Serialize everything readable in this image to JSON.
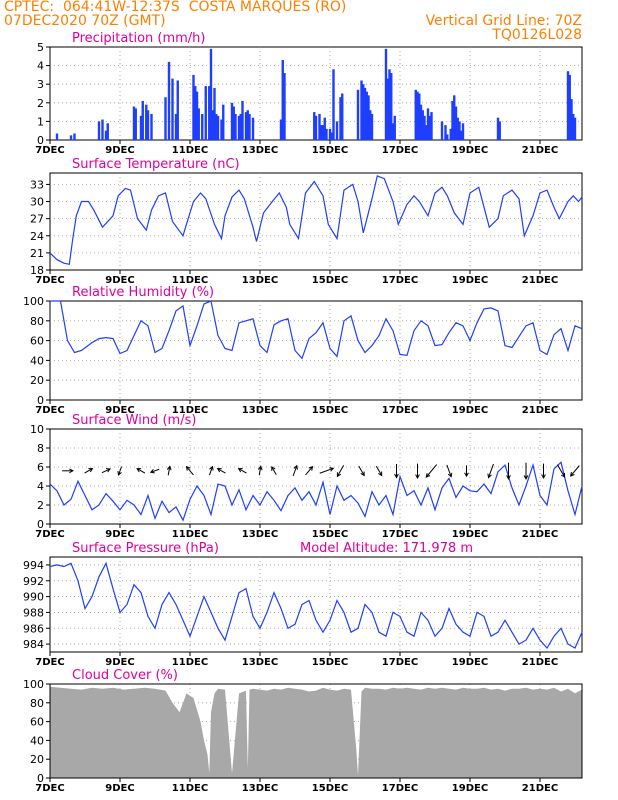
{
  "header": {
    "line1": "CPTEC:  064:41W-12:37S  COSTA MARQUES (RO)",
    "line2": "07DEC2020 70Z (GMT)",
    "grid_note": "Vertical Grid Line: 70Z",
    "model_code": "TQ0126L028"
  },
  "colors": {
    "series": "#1f3fff",
    "title": "#e0009a",
    "header": "#ff7f00",
    "arrow": "#000000",
    "cloud": "#a8a8a8",
    "grid": "#9a9a9a"
  },
  "x_tick_labels": [
    "7DEC",
    "9DEC",
    "11DEC",
    "13DEC",
    "15DEC",
    "17DEC",
    "19DEC",
    "21DEC"
  ],
  "x_tick_days": [
    7,
    9,
    11,
    13,
    15,
    17,
    19,
    21
  ],
  "x_range_days": [
    7,
    22.2
  ],
  "chart_data": [
    {
      "id": "precip",
      "type": "bar",
      "title": "Precipitation (mm/h)",
      "ylim": [
        0,
        5
      ],
      "yticks": [
        0,
        1,
        2,
        3,
        4,
        5
      ],
      "x_days": [
        7.2,
        7.6,
        7.7,
        8.4,
        8.5,
        8.6,
        8.65,
        9.4,
        9.45,
        9.6,
        9.65,
        9.75,
        9.8,
        9.9,
        10.3,
        10.4,
        10.5,
        10.6,
        10.65,
        11.1,
        11.15,
        11.2,
        11.25,
        11.35,
        11.45,
        11.55,
        11.6,
        11.65,
        11.7,
        11.75,
        11.8,
        11.9,
        11.95,
        12.2,
        12.25,
        12.3,
        12.4,
        12.45,
        12.5,
        12.6,
        12.65,
        12.7,
        12.8,
        13.6,
        13.65,
        13.7,
        14.55,
        14.6,
        14.7,
        14.75,
        14.8,
        14.85,
        14.9,
        15.0,
        15.05,
        15.1,
        15.2,
        15.3,
        15.35,
        15.8,
        15.9,
        15.95,
        16.0,
        16.05,
        16.1,
        16.15,
        16.2,
        16.6,
        16.65,
        16.7,
        16.75,
        16.8,
        16.85,
        17.45,
        17.5,
        17.55,
        17.6,
        17.65,
        17.7,
        17.75,
        17.8,
        17.85,
        17.9,
        18.2,
        18.3,
        18.35,
        18.45,
        18.5,
        18.55,
        18.6,
        18.65,
        18.7,
        18.75,
        18.8,
        19.8,
        19.85,
        21.8,
        21.85,
        21.9,
        21.95,
        22.0
      ],
      "values": [
        0.35,
        0.25,
        0.35,
        1.0,
        1.1,
        0.5,
        0.9,
        1.8,
        1.7,
        1.3,
        2.1,
        1.9,
        1.6,
        1.4,
        2.3,
        4.2,
        3.3,
        1.4,
        3.2,
        3.5,
        2.9,
        2.6,
        1.7,
        1.4,
        2.9,
        2.9,
        4.9,
        1.6,
        2.8,
        1.4,
        1.3,
        1.1,
        1.9,
        2.0,
        1.8,
        1.4,
        1.3,
        1.4,
        2.1,
        1.5,
        1.6,
        1.4,
        1.2,
        1.1,
        4.3,
        3.6,
        1.5,
        1.3,
        1.4,
        0.8,
        0.8,
        1.2,
        0.6,
        0.6,
        0.4,
        3.8,
        1.0,
        2.3,
        2.5,
        2.7,
        3.2,
        3.0,
        2.8,
        2.6,
        2.4,
        1.6,
        1.4,
        4.9,
        3.3,
        3.8,
        3.6,
        0.9,
        1.3,
        2.7,
        2.6,
        2.5,
        1.9,
        1.6,
        1.3,
        0.8,
        1.7,
        1.3,
        1.5,
        1.0,
        0.8,
        0.3,
        0.6,
        2.1,
        2.4,
        1.8,
        1.2,
        1.0,
        0.5,
        0.9,
        1.2,
        1.0,
        3.7,
        3.5,
        2.2,
        1.4,
        1.2
      ]
    },
    {
      "id": "temp",
      "type": "line",
      "title": "Surface Temperature (nC)",
      "ylim": [
        18,
        35
      ],
      "yticks": [
        18,
        21,
        24,
        27,
        30,
        33
      ],
      "x_days": [
        7.0,
        7.2,
        7.4,
        7.55,
        7.65,
        7.75,
        7.9,
        8.1,
        8.25,
        8.5,
        8.8,
        8.95,
        9.15,
        9.3,
        9.5,
        9.75,
        9.9,
        10.1,
        10.3,
        10.5,
        10.8,
        10.95,
        11.1,
        11.3,
        11.45,
        11.7,
        11.9,
        12.0,
        12.2,
        12.4,
        12.55,
        12.8,
        12.9,
        13.1,
        13.35,
        13.55,
        13.75,
        13.85,
        14.1,
        14.3,
        14.55,
        14.8,
        14.95,
        15.2,
        15.4,
        15.65,
        15.8,
        15.95,
        16.2,
        16.35,
        16.55,
        16.8,
        16.95,
        17.2,
        17.4,
        17.55,
        17.8,
        18.0,
        18.2,
        18.35,
        18.55,
        18.8,
        19.0,
        19.25,
        19.4,
        19.55,
        19.8,
        19.95,
        20.2,
        20.4,
        20.55,
        20.8,
        21.0,
        21.2,
        21.4,
        21.55,
        21.8,
        21.95,
        22.1,
        22.2
      ],
      "values": [
        21.0,
        19.8,
        19.2,
        19.0,
        23.5,
        27.5,
        30.0,
        30.0,
        28.5,
        25.5,
        27.5,
        31.0,
        32.3,
        32.0,
        27.0,
        25.0,
        28.5,
        31.0,
        31.5,
        26.5,
        24.0,
        27.0,
        30.0,
        31.5,
        30.5,
        26.0,
        23.5,
        27.5,
        30.8,
        32.0,
        30.5,
        25.5,
        23.0,
        28.0,
        30.0,
        31.5,
        29.0,
        26.0,
        23.5,
        31.5,
        33.5,
        31.0,
        26.0,
        23.5,
        32.0,
        33.0,
        30.0,
        24.5,
        30.5,
        34.5,
        34.0,
        30.0,
        26.0,
        29.5,
        31.0,
        30.0,
        27.5,
        31.5,
        32.5,
        31.0,
        28.0,
        26.0,
        31.5,
        32.5,
        29.0,
        25.5,
        27.0,
        31.0,
        32.0,
        30.5,
        24.0,
        27.5,
        31.5,
        32.0,
        29.0,
        27.0,
        30.0,
        31.0,
        30.0,
        30.8
      ]
    },
    {
      "id": "humidity",
      "type": "line",
      "title": "Relative Humidity (%)",
      "ylim": [
        0,
        100
      ],
      "yticks": [
        0,
        20,
        40,
        60,
        80,
        100
      ],
      "x_days": [
        7.0,
        7.3,
        7.5,
        7.7,
        7.9,
        8.2,
        8.4,
        8.6,
        8.8,
        9.0,
        9.2,
        9.4,
        9.6,
        9.8,
        10.0,
        10.2,
        10.4,
        10.6,
        10.8,
        11.0,
        11.2,
        11.4,
        11.6,
        11.8,
        12.0,
        12.2,
        12.4,
        12.6,
        12.8,
        13.0,
        13.2,
        13.4,
        13.6,
        13.8,
        14.0,
        14.2,
        14.4,
        14.6,
        14.8,
        15.0,
        15.2,
        15.4,
        15.6,
        15.8,
        16.0,
        16.2,
        16.4,
        16.6,
        16.8,
        17.0,
        17.2,
        17.4,
        17.6,
        17.8,
        18.0,
        18.2,
        18.4,
        18.6,
        18.8,
        19.0,
        19.2,
        19.4,
        19.6,
        19.8,
        20.0,
        20.2,
        20.4,
        20.6,
        20.8,
        21.0,
        21.2,
        21.4,
        21.6,
        21.8,
        22.0,
        22.2
      ],
      "values": [
        100,
        100,
        60,
        48,
        50,
        58,
        62,
        63,
        62,
        47,
        50,
        65,
        80,
        75,
        48,
        52,
        70,
        90,
        95,
        55,
        75,
        97,
        100,
        65,
        52,
        50,
        78,
        80,
        82,
        55,
        48,
        76,
        80,
        82,
        50,
        42,
        62,
        68,
        78,
        52,
        44,
        80,
        85,
        60,
        48,
        55,
        65,
        82,
        70,
        46,
        45,
        70,
        80,
        75,
        55,
        56,
        68,
        78,
        75,
        60,
        78,
        92,
        93,
        90,
        55,
        53,
        64,
        75,
        78,
        50,
        46,
        66,
        72,
        50,
        75,
        72
      ]
    },
    {
      "id": "wind",
      "type": "line",
      "title": "Surface Wind (m/s)",
      "ylim": [
        0,
        10
      ],
      "yticks": [
        0,
        2,
        4,
        6,
        8,
        10
      ],
      "x_days": [
        7.0,
        7.2,
        7.4,
        7.6,
        7.8,
        8.0,
        8.2,
        8.4,
        8.6,
        8.8,
        9.0,
        9.2,
        9.4,
        9.6,
        9.8,
        10.0,
        10.2,
        10.4,
        10.6,
        10.8,
        11.0,
        11.2,
        11.4,
        11.6,
        11.8,
        12.0,
        12.2,
        12.4,
        12.6,
        12.8,
        13.0,
        13.2,
        13.4,
        13.6,
        13.8,
        14.0,
        14.2,
        14.4,
        14.6,
        14.8,
        15.0,
        15.2,
        15.4,
        15.6,
        15.8,
        16.0,
        16.2,
        16.4,
        16.6,
        16.8,
        17.0,
        17.2,
        17.4,
        17.6,
        17.8,
        18.0,
        18.2,
        18.4,
        18.6,
        18.8,
        19.0,
        19.2,
        19.4,
        19.6,
        19.8,
        20.0,
        20.2,
        20.4,
        20.6,
        20.8,
        21.0,
        21.2,
        21.4,
        21.6,
        21.8,
        22.0,
        22.2
      ],
      "values": [
        4.2,
        3.5,
        2.0,
        2.6,
        4.5,
        3.0,
        1.5,
        2.0,
        3.2,
        2.4,
        1.5,
        2.5,
        2.0,
        1.0,
        3.0,
        0.6,
        2.4,
        1.2,
        1.8,
        0.4,
        2.6,
        4.0,
        3.0,
        1.0,
        4.2,
        4.0,
        2.0,
        3.6,
        1.5,
        3.0,
        2.0,
        3.4,
        2.5,
        1.4,
        3.0,
        3.8,
        2.5,
        3.4,
        2.0,
        4.4,
        1.0,
        4.0,
        2.5,
        3.0,
        2.2,
        0.8,
        3.4,
        2.0,
        3.0,
        1.0,
        5.0,
        3.0,
        3.5,
        2.0,
        3.8,
        1.5,
        3.8,
        4.8,
        2.8,
        4.0,
        3.5,
        3.4,
        4.2,
        3.2,
        5.5,
        6.2,
        3.8,
        2.0,
        4.0,
        6.2,
        3.0,
        2.0,
        5.8,
        6.5,
        3.5,
        1.0,
        4.0
      ],
      "arrows": {
        "x_days": [
          7.5,
          8.1,
          8.6,
          9.0,
          9.6,
          10.0,
          10.4,
          11.0,
          11.6,
          11.9,
          12.5,
          13.0,
          13.4,
          14.0,
          14.4,
          14.9,
          15.3,
          15.9,
          16.4,
          16.9,
          17.5,
          17.9,
          18.4,
          18.9,
          19.6,
          20.1,
          20.6,
          21.1,
          21.6,
          22.0
        ],
        "directions_deg": [
          90,
          60,
          65,
          200,
          300,
          250,
          10,
          320,
          20,
          300,
          300,
          10,
          330,
          20,
          40,
          70,
          210,
          150,
          150,
          180,
          180,
          220,
          160,
          180,
          200,
          180,
          180,
          180,
          150,
          220
        ],
        "lengths": [
          1.2,
          1.0,
          1.0,
          1.0,
          1.0,
          1.0,
          1.0,
          1.2,
          1.0,
          1.0,
          1.0,
          1.0,
          1.0,
          1.2,
          1.2,
          1.6,
          1.4,
          1.2,
          1.2,
          1.5,
          1.6,
          1.8,
          1.4,
          1.2,
          1.6,
          1.8,
          1.8,
          1.6,
          1.6,
          1.5
        ]
      }
    },
    {
      "id": "pressure",
      "type": "line",
      "title": "Surface Pressure (hPa)",
      "annotation": "Model Altitude: 171.978  m",
      "ylim": [
        983,
        995
      ],
      "yticks": [
        984,
        986,
        988,
        990,
        992,
        994
      ],
      "x_days": [
        7.0,
        7.2,
        7.4,
        7.6,
        7.8,
        8.0,
        8.2,
        8.4,
        8.6,
        8.8,
        9.0,
        9.2,
        9.4,
        9.6,
        9.8,
        10.0,
        10.2,
        10.4,
        10.6,
        10.8,
        11.0,
        11.2,
        11.4,
        11.6,
        11.8,
        12.0,
        12.2,
        12.4,
        12.6,
        12.8,
        13.0,
        13.2,
        13.4,
        13.6,
        13.8,
        14.0,
        14.2,
        14.4,
        14.6,
        14.8,
        15.0,
        15.2,
        15.4,
        15.6,
        15.8,
        16.0,
        16.2,
        16.4,
        16.6,
        16.8,
        17.0,
        17.2,
        17.4,
        17.6,
        17.8,
        18.0,
        18.2,
        18.4,
        18.6,
        18.8,
        19.0,
        19.2,
        19.4,
        19.6,
        19.8,
        20.0,
        20.2,
        20.4,
        20.6,
        20.8,
        21.0,
        21.2,
        21.4,
        21.6,
        21.8,
        22.0,
        22.2
      ],
      "values": [
        993.8,
        994.0,
        993.8,
        994.2,
        992.0,
        988.5,
        990.0,
        992.5,
        994.2,
        991.0,
        988.0,
        989.0,
        991.5,
        990.5,
        987.5,
        986.0,
        989.0,
        990.5,
        989.0,
        987.0,
        985.0,
        987.5,
        990.0,
        988.0,
        986.0,
        984.5,
        987.5,
        990.5,
        991.0,
        987.5,
        986.0,
        988.0,
        990.5,
        988.5,
        986.0,
        986.5,
        989.0,
        989.5,
        987.0,
        985.5,
        987.0,
        989.5,
        988.0,
        985.5,
        986.0,
        989.0,
        988.0,
        985.5,
        985.0,
        988.0,
        987.5,
        985.5,
        985.0,
        988.0,
        987.0,
        985.0,
        986.0,
        988.5,
        986.5,
        985.5,
        985.0,
        988.0,
        987.5,
        985.0,
        985.5,
        987.0,
        985.5,
        984.0,
        984.5,
        986.0,
        984.5,
        983.5,
        985.0,
        986.0,
        984.0,
        983.5,
        985.5
      ]
    },
    {
      "id": "cloud",
      "type": "area",
      "title": "Cloud Cover (%)",
      "ylim": [
        0,
        100
      ],
      "yticks": [
        0,
        20,
        40,
        60,
        80,
        100
      ],
      "x_days": [
        7.0,
        7.3,
        7.6,
        7.9,
        8.2,
        8.5,
        8.8,
        9.1,
        9.4,
        9.7,
        10.0,
        10.3,
        10.5,
        10.7,
        10.9,
        11.1,
        11.3,
        11.4,
        11.5,
        11.55,
        11.6,
        11.7,
        11.8,
        12.0,
        12.2,
        12.4,
        12.6,
        12.65,
        12.7,
        12.8,
        13.0,
        13.2,
        13.4,
        13.6,
        13.8,
        14.0,
        14.2,
        14.4,
        14.6,
        14.8,
        15.0,
        15.2,
        15.4,
        15.6,
        15.75,
        15.8,
        15.9,
        16.0,
        16.2,
        16.4,
        16.6,
        16.8,
        17.0,
        17.2,
        17.4,
        17.6,
        17.8,
        18.0,
        18.2,
        18.4,
        18.6,
        18.8,
        19.0,
        19.2,
        19.4,
        19.6,
        19.8,
        20.0,
        20.2,
        20.4,
        20.6,
        20.8,
        21.0,
        21.2,
        21.4,
        21.6,
        21.8,
        22.0,
        22.2
      ],
      "values": [
        97,
        96,
        95,
        94,
        96,
        95,
        96,
        94,
        95,
        96,
        95,
        93,
        80,
        70,
        90,
        85,
        60,
        40,
        25,
        5,
        70,
        90,
        95,
        94,
        5,
        90,
        93,
        10,
        94,
        95,
        94,
        93,
        95,
        94,
        96,
        95,
        94,
        92,
        93,
        96,
        94,
        93,
        95,
        94,
        30,
        3,
        92,
        96,
        95,
        95,
        94,
        96,
        95,
        96,
        95,
        94,
        96,
        95,
        96,
        95,
        94,
        96,
        95,
        95,
        96,
        94,
        95,
        93,
        95,
        95,
        96,
        94,
        95,
        94,
        96,
        92,
        95,
        90,
        94
      ]
    }
  ]
}
